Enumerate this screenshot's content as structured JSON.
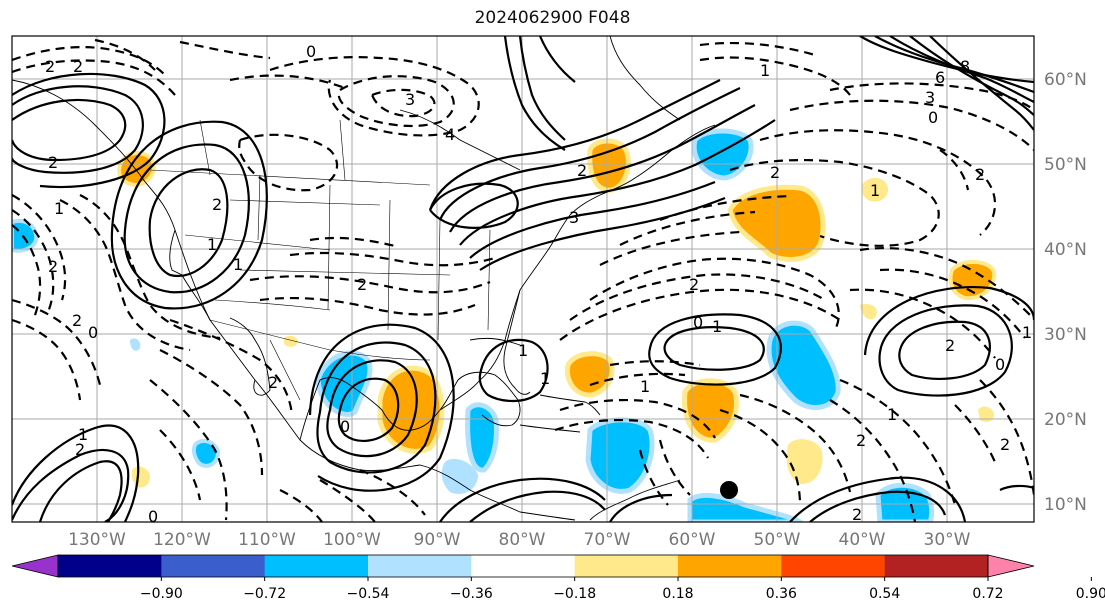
{
  "title": "2024062900 F048",
  "map": {
    "lat_labels": [
      "60°N",
      "50°N",
      "40°N",
      "30°N",
      "20°N",
      "10°N"
    ],
    "lon_labels": [
      "130°W",
      "120°W",
      "110°W",
      "100°W",
      "90°W",
      "80°W",
      "70°W",
      "60°W",
      "50°W",
      "40°W",
      "30°W"
    ],
    "contour_labels": [
      "0",
      "2",
      "2",
      "2",
      "3",
      "4",
      "2",
      "1",
      "6",
      "8",
      "3",
      "0",
      "1",
      "2",
      "2",
      "1",
      "2",
      "1",
      "2",
      "0",
      "1",
      "2",
      "1",
      "0",
      "1",
      "2",
      "2",
      "0",
      "2",
      "1",
      "0",
      "1",
      "2",
      "2",
      "1",
      "0",
      "2",
      "2",
      "1",
      "3",
      "1",
      "2"
    ],
    "low_center_marker": "black-dot"
  },
  "colorbar": {
    "colors": [
      "#9932cc",
      "#00008b",
      "#3a5fcd",
      "#00bfff",
      "#b0e2ff",
      "#ffffff",
      "#ffe98a",
      "#ffa500",
      "#ff4500",
      "#b22222",
      "#ff82ab"
    ],
    "ticks": [
      "−0.90",
      "−0.72",
      "−0.54",
      "−0.36",
      "−0.18",
      "0.18",
      "0.36",
      "0.54",
      "0.72",
      "0.90"
    ]
  }
}
